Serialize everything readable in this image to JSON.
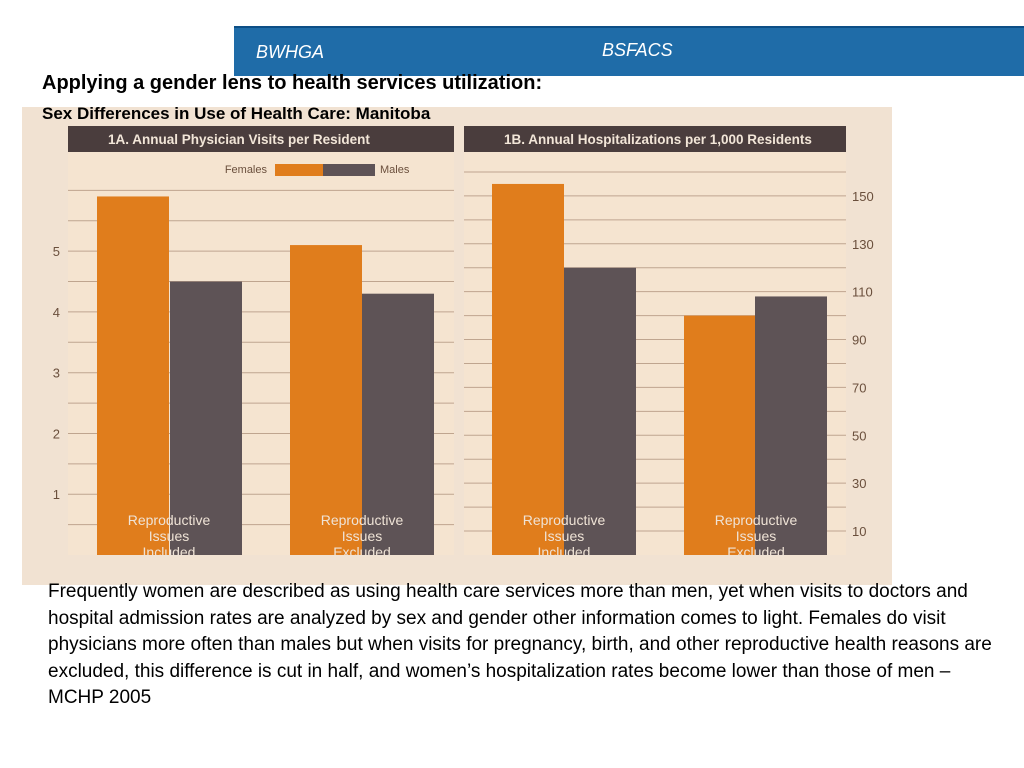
{
  "header": {
    "left_label": "BWHGA",
    "right_label": "BSFACS"
  },
  "slide": {
    "title": "Applying a gender lens to health services utilization:",
    "subtitle": "Sex Differences in Use of Health Care: Manitoba",
    "body": "Frequently women are  described as using health care services more than men, yet when visits to doctors and hospital admission rates are analyzed by sex and gender other information comes to light. Females do visit physicians more often than males but when visits for pregnancy, birth, and other reproductive health reasons are excluded, this difference is cut in half, and women’s hospitalization rates become lower than those of men – MCHP 2005"
  },
  "colors": {
    "females": "#e07d1c",
    "males": "#5e5356",
    "panel_bg": "#f5e4d0",
    "panel_header": "#4a3d3d",
    "gridline": "#bfa58f",
    "axis_text": "#6a4f3c"
  },
  "chart_data": [
    {
      "type": "bar",
      "title": "1A. Annual Physician Visits per Resident",
      "categories": [
        "Reproductive Issues Included",
        "Reproductive Issues Excluded"
      ],
      "series": [
        {
          "name": "Females",
          "values": [
            5.9,
            5.1
          ]
        },
        {
          "name": "Males",
          "values": [
            4.5,
            4.3
          ]
        }
      ],
      "yticks": [
        1,
        2,
        3,
        4,
        5
      ],
      "ylim": [
        0,
        6.5
      ],
      "yaxis_side": "left",
      "grid": true,
      "legend": "top"
    },
    {
      "type": "bar",
      "title": "1B. Annual Hospitalizations per 1,000 Residents",
      "categories": [
        "Reproductive Issues Included",
        "Reproductive Issues Excluded"
      ],
      "series": [
        {
          "name": "Females",
          "values": [
            155,
            100
          ]
        },
        {
          "name": "Males",
          "values": [
            120,
            108
          ]
        }
      ],
      "yticks": [
        10,
        30,
        50,
        70,
        90,
        110,
        130,
        150
      ],
      "ylim": [
        0,
        165
      ],
      "yaxis_side": "right",
      "grid": true,
      "legend": "none"
    }
  ]
}
